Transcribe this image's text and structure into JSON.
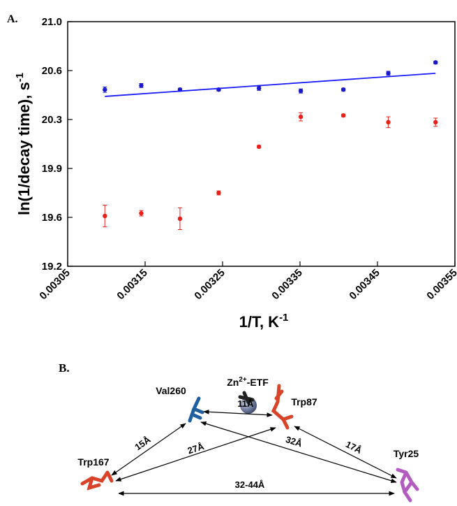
{
  "panel_a_label": "A.",
  "chart_data": {
    "type": "scatter",
    "x_label": "1/T, K",
    "x_label_sup": "-1",
    "y_label": "ln(1/decay time), s",
    "y_label_sup": "-1",
    "xlim": [
      0.00305,
      0.00355
    ],
    "xticks": [
      0.00305,
      0.00315,
      0.00325,
      0.00335,
      0.00345,
      0.00355
    ],
    "ylim": [
      19.2,
      21.0
    ],
    "yticks": [
      {
        "value": 19.2,
        "label": "19.2"
      },
      {
        "value": 19.56,
        "label": "19.6"
      },
      {
        "value": 19.92,
        "label": "19.9"
      },
      {
        "value": 20.28,
        "label": "20.3"
      },
      {
        "value": 20.64,
        "label": "20.6"
      },
      {
        "value": 21.0,
        "label": "21.0"
      }
    ],
    "series": [
      {
        "type": "scatter",
        "color": "#1a1acc",
        "x": [
          0.003098,
          0.003145,
          0.003195,
          0.003245,
          0.003297,
          0.003351,
          0.003406,
          0.003464,
          0.003525
        ],
        "values": [
          20.5,
          20.53,
          20.5,
          20.5,
          20.51,
          20.49,
          20.5,
          20.62,
          20.7
        ],
        "errors": [
          0.02,
          0.015,
          0.01,
          0.01,
          0.015,
          0.015,
          0.01,
          0.015,
          0.01
        ]
      },
      {
        "type": "scatter",
        "color": "#e8201a",
        "x": [
          0.003098,
          0.003145,
          0.003195,
          0.003245,
          0.003297,
          0.003351,
          0.003406,
          0.003464,
          0.003525
        ],
        "values": [
          19.57,
          19.59,
          19.55,
          19.74,
          20.08,
          20.3,
          20.31,
          20.26,
          20.26
        ],
        "errors": [
          0.08,
          0.02,
          0.08,
          0.015,
          0.01,
          0.03,
          0.01,
          0.04,
          0.03
        ]
      },
      {
        "type": "line",
        "color": "#1a1aff",
        "x": [
          0.003098,
          0.003525
        ],
        "values": [
          20.45,
          20.62
        ]
      }
    ]
  },
  "diagram": {
    "label": "B.",
    "nodes": [
      {
        "label": "Zn",
        "sup": "2+",
        "suffix": "-ETF"
      },
      {
        "label": "Val260"
      },
      {
        "label": "Trp87"
      },
      {
        "label": "Trp167"
      },
      {
        "label": "Tyr25"
      }
    ],
    "edges": [
      {
        "label": "11Å"
      },
      {
        "label": "15Å"
      },
      {
        "label": "27Å"
      },
      {
        "label": "32Å"
      },
      {
        "label": "17Å"
      },
      {
        "label": "32-44Å"
      }
    ]
  }
}
